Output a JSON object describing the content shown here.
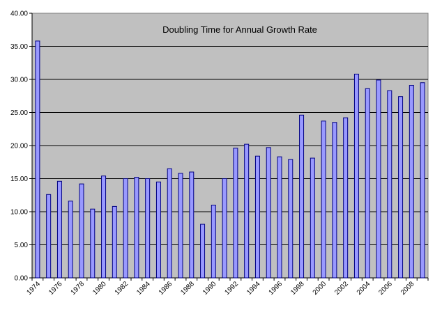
{
  "chart_data": {
    "type": "bar",
    "title": "Doubling Time for Annual Growth Rate",
    "xlabel": "",
    "ylabel": "",
    "ylim": [
      0,
      40
    ],
    "yticks": [
      "0.00",
      "5.00",
      "10.00",
      "15.00",
      "20.00",
      "25.00",
      "30.00",
      "35.00",
      "40.00"
    ],
    "grid": true,
    "categories": [
      "1974",
      "1975",
      "1976",
      "1977",
      "1978",
      "1979",
      "1980",
      "1981",
      "1982",
      "1983",
      "1984",
      "1985",
      "1986",
      "1987",
      "1988",
      "1989",
      "1990",
      "1991",
      "1992",
      "1993",
      "1994",
      "1995",
      "1996",
      "1997",
      "1998",
      "1999",
      "2000",
      "2001",
      "2002",
      "2003",
      "2004",
      "2005",
      "2006",
      "2007",
      "2008",
      "2009"
    ],
    "xtick_labels": [
      "1974",
      "1976",
      "1978",
      "1980",
      "1982",
      "1984",
      "1986",
      "1988",
      "1990",
      "1992",
      "1994",
      "1996",
      "1998",
      "2000",
      "2002",
      "2004",
      "2006",
      "2008"
    ],
    "values": [
      35.8,
      12.6,
      14.6,
      11.6,
      14.2,
      10.4,
      15.4,
      10.8,
      15.0,
      15.2,
      15.0,
      14.5,
      16.5,
      15.8,
      16.0,
      8.1,
      11.0,
      15.0,
      19.6,
      20.2,
      18.4,
      19.7,
      18.3,
      17.9,
      24.6,
      18.1,
      23.7,
      23.5,
      24.2,
      30.8,
      28.6,
      29.9,
      28.3,
      27.4,
      29.1,
      29.5
    ],
    "colors": {
      "plot_background": "#c0c0c0",
      "bar_fill": "#9999ff",
      "bar_stroke": "#000080",
      "grid": "#000000"
    }
  }
}
